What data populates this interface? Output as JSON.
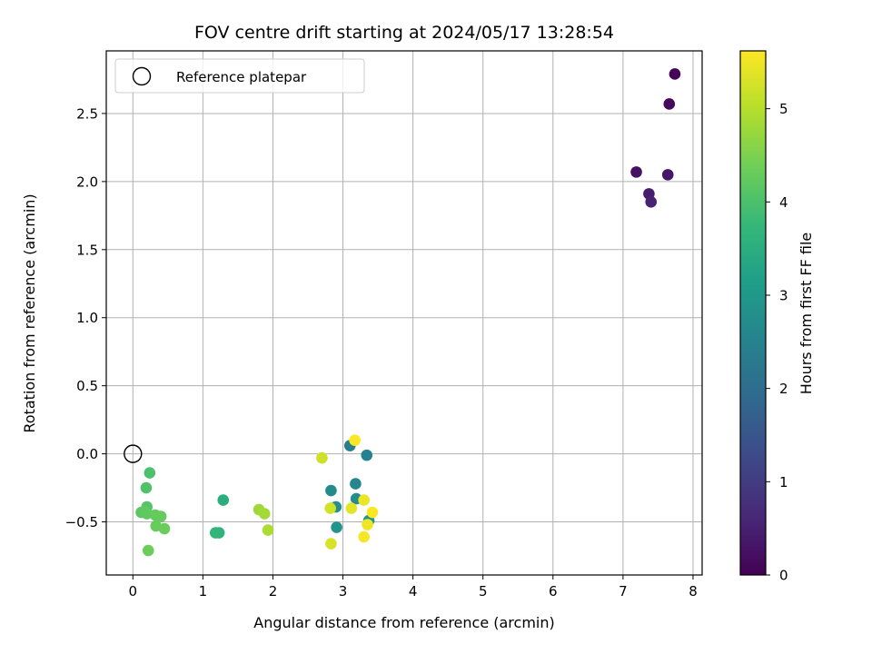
{
  "chart_data": {
    "type": "scatter",
    "title": "FOV centre drift starting at 2024/05/17 13:28:54",
    "xlabel": "Angular distance from reference (arcmin)",
    "ylabel": "Rotation from reference (arcmin)",
    "xlim": [
      -0.38,
      8.13
    ],
    "ylim": [
      -0.89,
      2.96
    ],
    "xticks": [
      0,
      1,
      2,
      3,
      4,
      5,
      6,
      7,
      8
    ],
    "xtick_labels": [
      "0",
      "1",
      "2",
      "3",
      "4",
      "5",
      "6",
      "7",
      "8"
    ],
    "yticks": [
      -0.5,
      0.0,
      0.5,
      1.0,
      1.5,
      2.0,
      2.5
    ],
    "ytick_labels": [
      "−0.5",
      "0.0",
      "0.5",
      "1.0",
      "1.5",
      "2.0",
      "2.5"
    ],
    "grid": true,
    "legend": {
      "placement": "top-left",
      "entries": [
        {
          "label": "Reference platepar",
          "marker": "open-circle",
          "color": "#000000"
        }
      ]
    },
    "reference_point": {
      "x": 0,
      "y": 0
    },
    "colorbar": {
      "label": "Hours from first FF file",
      "colormap": "viridis",
      "range": [
        0,
        5.62
      ],
      "ticks": [
        0,
        1,
        2,
        3,
        4,
        5
      ],
      "tick_labels": [
        "0",
        "1",
        "2",
        "3",
        "4",
        "5"
      ]
    },
    "points": [
      {
        "x": 7.74,
        "y": 2.79,
        "c": 0.05
      },
      {
        "x": 7.66,
        "y": 2.57,
        "c": 0.15
      },
      {
        "x": 7.19,
        "y": 2.07,
        "c": 0.25
      },
      {
        "x": 7.64,
        "y": 2.05,
        "c": 0.35
      },
      {
        "x": 7.37,
        "y": 1.91,
        "c": 0.45
      },
      {
        "x": 7.4,
        "y": 1.85,
        "c": 0.55
      },
      {
        "x": 3.1,
        "y": 0.06,
        "c": 2.4
      },
      {
        "x": 3.34,
        "y": -0.01,
        "c": 2.5
      },
      {
        "x": 3.18,
        "y": -0.22,
        "c": 2.6
      },
      {
        "x": 2.83,
        "y": -0.27,
        "c": 2.7
      },
      {
        "x": 3.19,
        "y": -0.33,
        "c": 2.75
      },
      {
        "x": 2.9,
        "y": -0.39,
        "c": 2.8
      },
      {
        "x": 2.91,
        "y": -0.54,
        "c": 2.9
      },
      {
        "x": 3.37,
        "y": -0.49,
        "c": 2.95
      },
      {
        "x": 1.29,
        "y": -0.34,
        "c": 3.5
      },
      {
        "x": 1.23,
        "y": -0.58,
        "c": 3.6
      },
      {
        "x": 1.18,
        "y": -0.58,
        "c": 3.7
      },
      {
        "x": 0.24,
        "y": -0.14,
        "c": 4.0
      },
      {
        "x": 0.19,
        "y": -0.25,
        "c": 4.05
      },
      {
        "x": 0.2,
        "y": -0.39,
        "c": 4.1
      },
      {
        "x": 0.12,
        "y": -0.43,
        "c": 4.15
      },
      {
        "x": 0.17,
        "y": -0.42,
        "c": 4.2
      },
      {
        "x": 0.2,
        "y": -0.44,
        "c": 4.22
      },
      {
        "x": 0.32,
        "y": -0.45,
        "c": 4.25
      },
      {
        "x": 0.4,
        "y": -0.46,
        "c": 4.28
      },
      {
        "x": 0.33,
        "y": -0.53,
        "c": 4.3
      },
      {
        "x": 0.45,
        "y": -0.55,
        "c": 4.32
      },
      {
        "x": 0.22,
        "y": -0.71,
        "c": 4.35
      },
      {
        "x": 1.8,
        "y": -0.41,
        "c": 4.8
      },
      {
        "x": 1.88,
        "y": -0.44,
        "c": 4.85
      },
      {
        "x": 1.93,
        "y": -0.56,
        "c": 4.9
      },
      {
        "x": 2.7,
        "y": -0.03,
        "c": 5.2
      },
      {
        "x": 2.82,
        "y": -0.4,
        "c": 5.25
      },
      {
        "x": 2.83,
        "y": -0.66,
        "c": 5.3
      },
      {
        "x": 3.12,
        "y": -0.4,
        "c": 5.4
      },
      {
        "x": 3.3,
        "y": -0.34,
        "c": 5.45
      },
      {
        "x": 3.35,
        "y": -0.52,
        "c": 5.5
      },
      {
        "x": 3.3,
        "y": -0.61,
        "c": 5.55
      },
      {
        "x": 3.17,
        "y": 0.1,
        "c": 5.6
      },
      {
        "x": 3.42,
        "y": -0.43,
        "c": 5.62
      }
    ]
  }
}
